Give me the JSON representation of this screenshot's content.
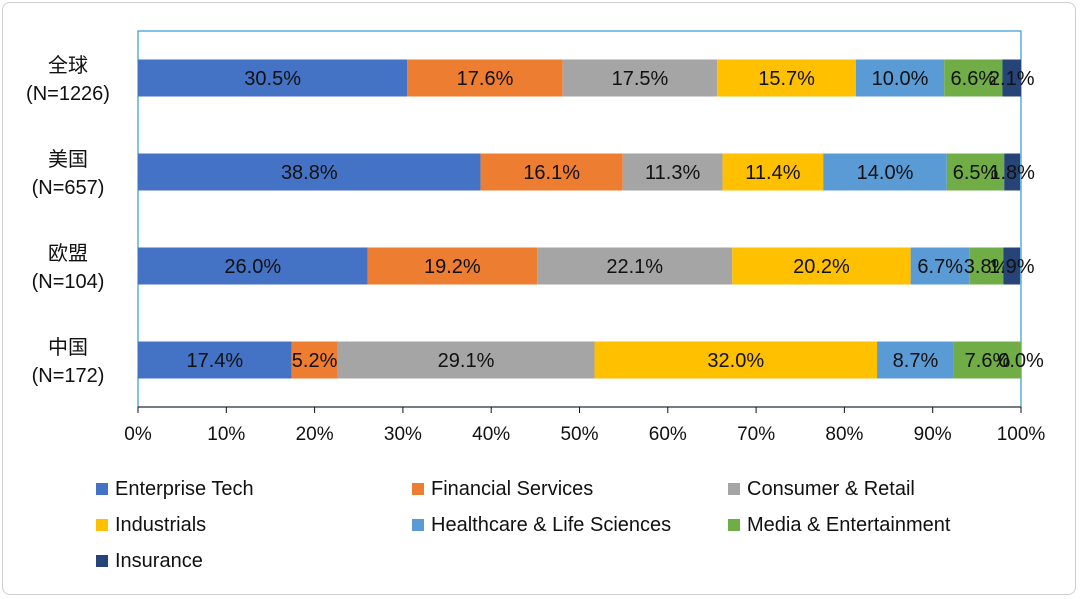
{
  "chart_data": {
    "type": "bar",
    "orientation": "horizontal",
    "stacked": true,
    "title": "",
    "xlabel": "",
    "ylabel": "",
    "categories": [
      {
        "name": "全球",
        "n": "(N=1226)"
      },
      {
        "name": "美国",
        "n": "(N=657)"
      },
      {
        "name": "欧盟",
        "n": "(N=104)"
      },
      {
        "name": "中国",
        "n": "(N=172)"
      }
    ],
    "series": [
      {
        "name": "Enterprise Tech",
        "color": "#4472C4",
        "values": [
          30.5,
          38.8,
          26.0,
          17.4
        ],
        "labels": [
          "30.5%",
          "38.8%",
          "26.0%",
          "17.4%"
        ]
      },
      {
        "name": "Financial Services",
        "color": "#ED7D31",
        "values": [
          17.6,
          16.1,
          19.2,
          5.2
        ],
        "labels": [
          "17.6%",
          "16.1%",
          "19.2%",
          "5.2%"
        ]
      },
      {
        "name": "Consumer & Retail",
        "color": "#A5A5A5",
        "values": [
          17.5,
          11.3,
          22.1,
          29.1
        ],
        "labels": [
          "17.5%",
          "11.3%",
          "22.1%",
          "29.1%"
        ]
      },
      {
        "name": "Industrials",
        "color": "#FFC000",
        "values": [
          15.7,
          11.4,
          20.2,
          32.0
        ],
        "labels": [
          "15.7%",
          "11.4%",
          "20.2%",
          "32.0%"
        ]
      },
      {
        "name": "Healthcare & Life Sciences",
        "color": "#5B9BD5",
        "values": [
          10.0,
          14.0,
          6.7,
          8.7
        ],
        "labels": [
          "10.0%",
          "14.0%",
          "6.7%",
          "8.7%"
        ]
      },
      {
        "name": "Media & Entertainment",
        "color": "#70AD47",
        "values": [
          6.6,
          6.5,
          3.8,
          7.6
        ],
        "labels": [
          "6.6%",
          "6.5%",
          "3.8%",
          "7.6%"
        ]
      },
      {
        "name": "Insurance",
        "color": "#264478",
        "values": [
          2.1,
          1.8,
          1.9,
          0.0
        ],
        "labels": [
          "2.1%",
          "1.8%",
          "1.9%",
          "0.0%"
        ]
      }
    ],
    "x_ticks": [
      "0%",
      "10%",
      "20%",
      "30%",
      "40%",
      "50%",
      "60%",
      "70%",
      "80%",
      "90%",
      "100%"
    ],
    "xlim": [
      0,
      100
    ],
    "grid": false,
    "legend_position": "bottom"
  }
}
